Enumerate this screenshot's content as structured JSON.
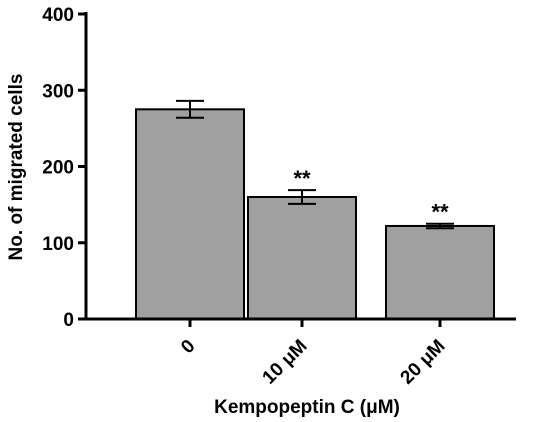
{
  "chart_data": {
    "type": "bar",
    "title": "",
    "xlabel": "Kempopeptin C (μM)",
    "ylabel": "No. of migrated cells",
    "categories": [
      "0",
      "10 μM",
      "20 μM"
    ],
    "values": [
      275,
      160,
      122
    ],
    "errors": [
      11,
      9,
      3
    ],
    "annotations": [
      "",
      "**",
      "**"
    ],
    "ylim": [
      0,
      400
    ],
    "yticks": [
      0,
      100,
      200,
      300,
      400
    ],
    "bar_color": "#a0a0a0",
    "edge_color": "#000000",
    "grid": false,
    "legend": "none"
  }
}
